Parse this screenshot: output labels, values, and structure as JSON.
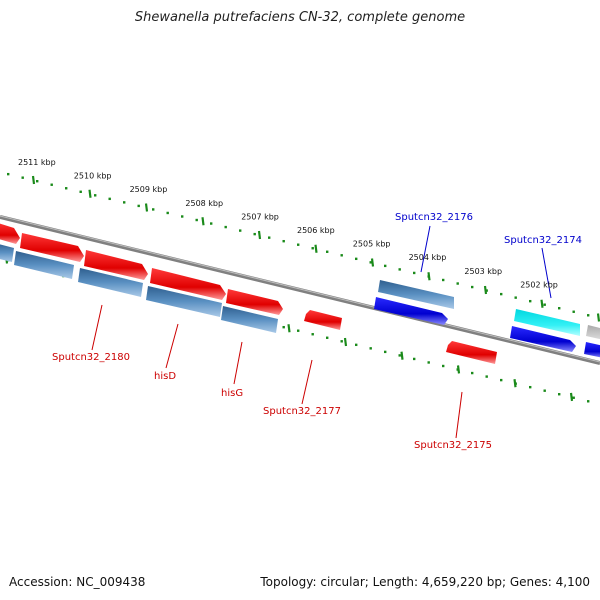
{
  "title": "Shewanella putrefaciens CN-32, complete genome",
  "footer": {
    "accession": "Accession: NC_009438",
    "topology": "Topology: circular; Length: 4,659,220 bp; Genes: 4,100"
  },
  "scale_ticks": [
    "2511 kbp",
    "2510 kbp",
    "2509 kbp",
    "2508 kbp",
    "2507 kbp",
    "2506 kbp",
    "2505 kbp",
    "2504 kbp",
    "2503 kbp",
    "2502 kbp"
  ],
  "labels": [
    {
      "text": "Sputcn32_2176",
      "color": "#0000cc"
    },
    {
      "text": "Sputcn32_2174",
      "color": "#0000cc"
    },
    {
      "text": "Sputcn32_2180",
      "color": "#cc0000"
    },
    {
      "text": "hisD",
      "color": "#cc0000"
    },
    {
      "text": "hisG",
      "color": "#cc0000"
    },
    {
      "text": "Sputcn32_2177",
      "color": "#cc0000"
    },
    {
      "text": "Sputcn32_2175",
      "color": "#cc0000"
    }
  ],
  "colors": {
    "forward_gene": "#ee0000",
    "reverse_gene": "#0000dd",
    "steel_gene": "#4f86b8",
    "cyan_gene": "#22e6ee",
    "backbone": "#808080",
    "tick": "#1a8a1a"
  }
}
